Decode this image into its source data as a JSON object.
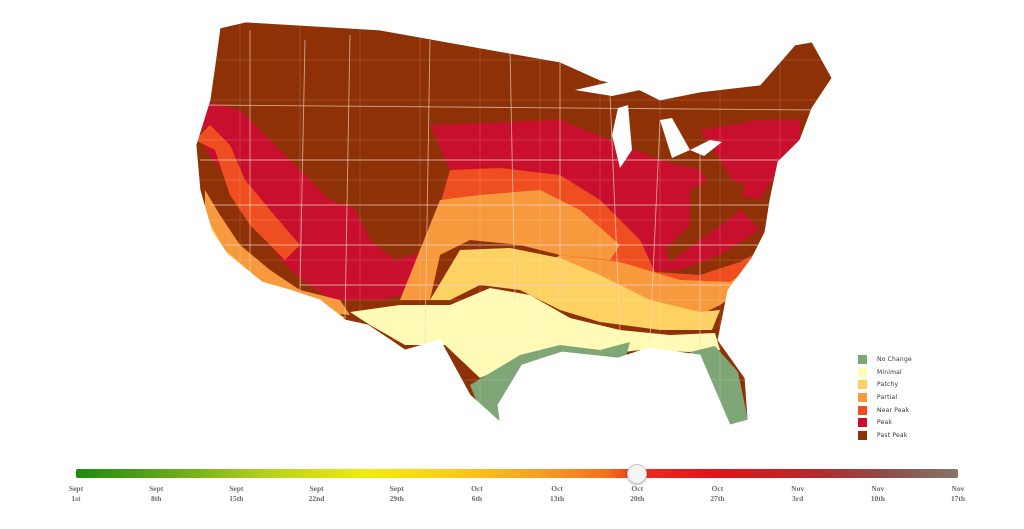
{
  "map": {
    "colors": {
      "no_change": "#7fa676",
      "minimal": "#fffab5",
      "patchy": "#fdd263",
      "partial": "#f79a3e",
      "near_peak": "#ef4f20",
      "peak": "#c8102e",
      "past_peak": "#8e3106"
    }
  },
  "legend": {
    "items": [
      {
        "label": "No Change",
        "color": "#7fa676"
      },
      {
        "label": "Minimal",
        "color": "#fffab5"
      },
      {
        "label": "Patchy",
        "color": "#fdd263"
      },
      {
        "label": "Partial",
        "color": "#f79a3e"
      },
      {
        "label": "Near Peak",
        "color": "#ef4f20"
      },
      {
        "label": "Peak",
        "color": "#c8102e"
      },
      {
        "label": "Past Peak",
        "color": "#8e3106"
      }
    ]
  },
  "timeline": {
    "selected_index": 7,
    "dates": [
      {
        "month": "Sept",
        "day": "1st"
      },
      {
        "month": "Sept",
        "day": "8th"
      },
      {
        "month": "Sept",
        "day": "15th"
      },
      {
        "month": "Sept",
        "day": "22nd"
      },
      {
        "month": "Sept",
        "day": "29th"
      },
      {
        "month": "Oct",
        "day": "6th"
      },
      {
        "month": "Oct",
        "day": "13th"
      },
      {
        "month": "Oct",
        "day": "20th"
      },
      {
        "month": "Oct",
        "day": "27th"
      },
      {
        "month": "Nov",
        "day": "3rd"
      },
      {
        "month": "Nov",
        "day": "10th"
      },
      {
        "month": "Nov",
        "day": "17th"
      }
    ]
  }
}
